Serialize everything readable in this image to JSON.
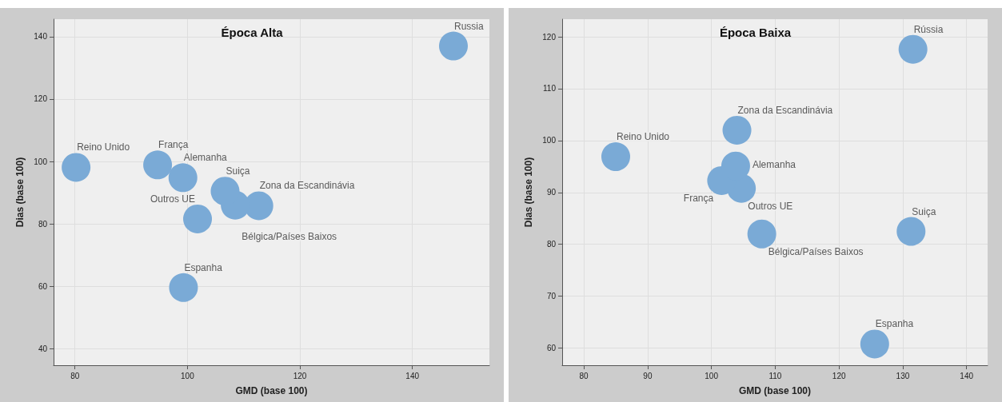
{
  "chart_data": [
    {
      "type": "scatter",
      "title": "Época Alta",
      "xlabel": "GMD (base 100)",
      "ylabel": "Dias (base 100)",
      "xlim": [
        76.2,
        153.7
      ],
      "ylim": [
        34.7,
        145.6
      ],
      "xticks": [
        80,
        100,
        120,
        140
      ],
      "yticks": [
        40,
        60,
        80,
        100,
        120,
        140
      ],
      "grid": true,
      "marker": "circle",
      "series": [
        {
          "color": "#7aaad6",
          "x": [
            80.2,
            94.7,
            99.2,
            106.7,
            108.5,
            112.7,
            101.8,
            99.3,
            147.3
          ],
          "values": [
            98.1,
            98.9,
            94.8,
            90.5,
            86.0,
            85.8,
            81.6,
            59.6,
            137.0
          ]
        }
      ],
      "annotations": [
        {
          "text": "Reino Unido",
          "x": 80.2,
          "y": 98.1
        },
        {
          "text": "França",
          "x": 94.7,
          "y": 98.9
        },
        {
          "text": "Alemanha",
          "x": 99.2,
          "y": 94.8
        },
        {
          "text": "Suiça",
          "x": 106.7,
          "y": 90.5
        },
        {
          "text": "Bélgica/Países Baixos",
          "x": 108.5,
          "y": 86.0
        },
        {
          "text": "Zona da Escandinávia",
          "x": 112.7,
          "y": 85.8
        },
        {
          "text": "Outros UE",
          "x": 101.8,
          "y": 81.6
        },
        {
          "text": "Espanha",
          "x": 99.3,
          "y": 59.6
        },
        {
          "text": "Russia",
          "x": 147.3,
          "y": 137.0
        }
      ]
    },
    {
      "type": "scatter",
      "title": "Época Baixa",
      "xlabel": "GMD (base 100)",
      "ylabel": "Dias (base 100)",
      "xlim": [
        76.6,
        143.3
      ],
      "ylim": [
        56.7,
        123.4
      ],
      "xticks": [
        80,
        90,
        100,
        110,
        120,
        130,
        140
      ],
      "yticks": [
        60,
        70,
        80,
        90,
        100,
        110,
        120
      ],
      "grid": true,
      "marker": "circle",
      "series": [
        {
          "color": "#7aaad6",
          "x": [
            85.0,
            104.0,
            103.8,
            101.6,
            104.7,
            107.9,
            131.3,
            125.6,
            131.6
          ],
          "values": [
            96.9,
            102.0,
            95.1,
            92.3,
            90.8,
            82.0,
            82.5,
            60.8,
            117.6
          ]
        }
      ],
      "annotations": [
        {
          "text": "Reino Unido",
          "x": 85.0,
          "y": 96.9
        },
        {
          "text": "Zona da Escandinávia",
          "x": 104.0,
          "y": 102.0
        },
        {
          "text": "Alemanha",
          "x": 103.8,
          "y": 95.1
        },
        {
          "text": "França",
          "x": 101.6,
          "y": 92.3
        },
        {
          "text": "Outros UE",
          "x": 104.7,
          "y": 90.8
        },
        {
          "text": "Bélgica/Países Baixos",
          "x": 107.9,
          "y": 82.0
        },
        {
          "text": "Suiça",
          "x": 131.3,
          "y": 82.5
        },
        {
          "text": "Espanha",
          "x": 125.6,
          "y": 60.8
        },
        {
          "text": "Rússia",
          "x": 131.6,
          "y": 117.6
        }
      ]
    }
  ]
}
